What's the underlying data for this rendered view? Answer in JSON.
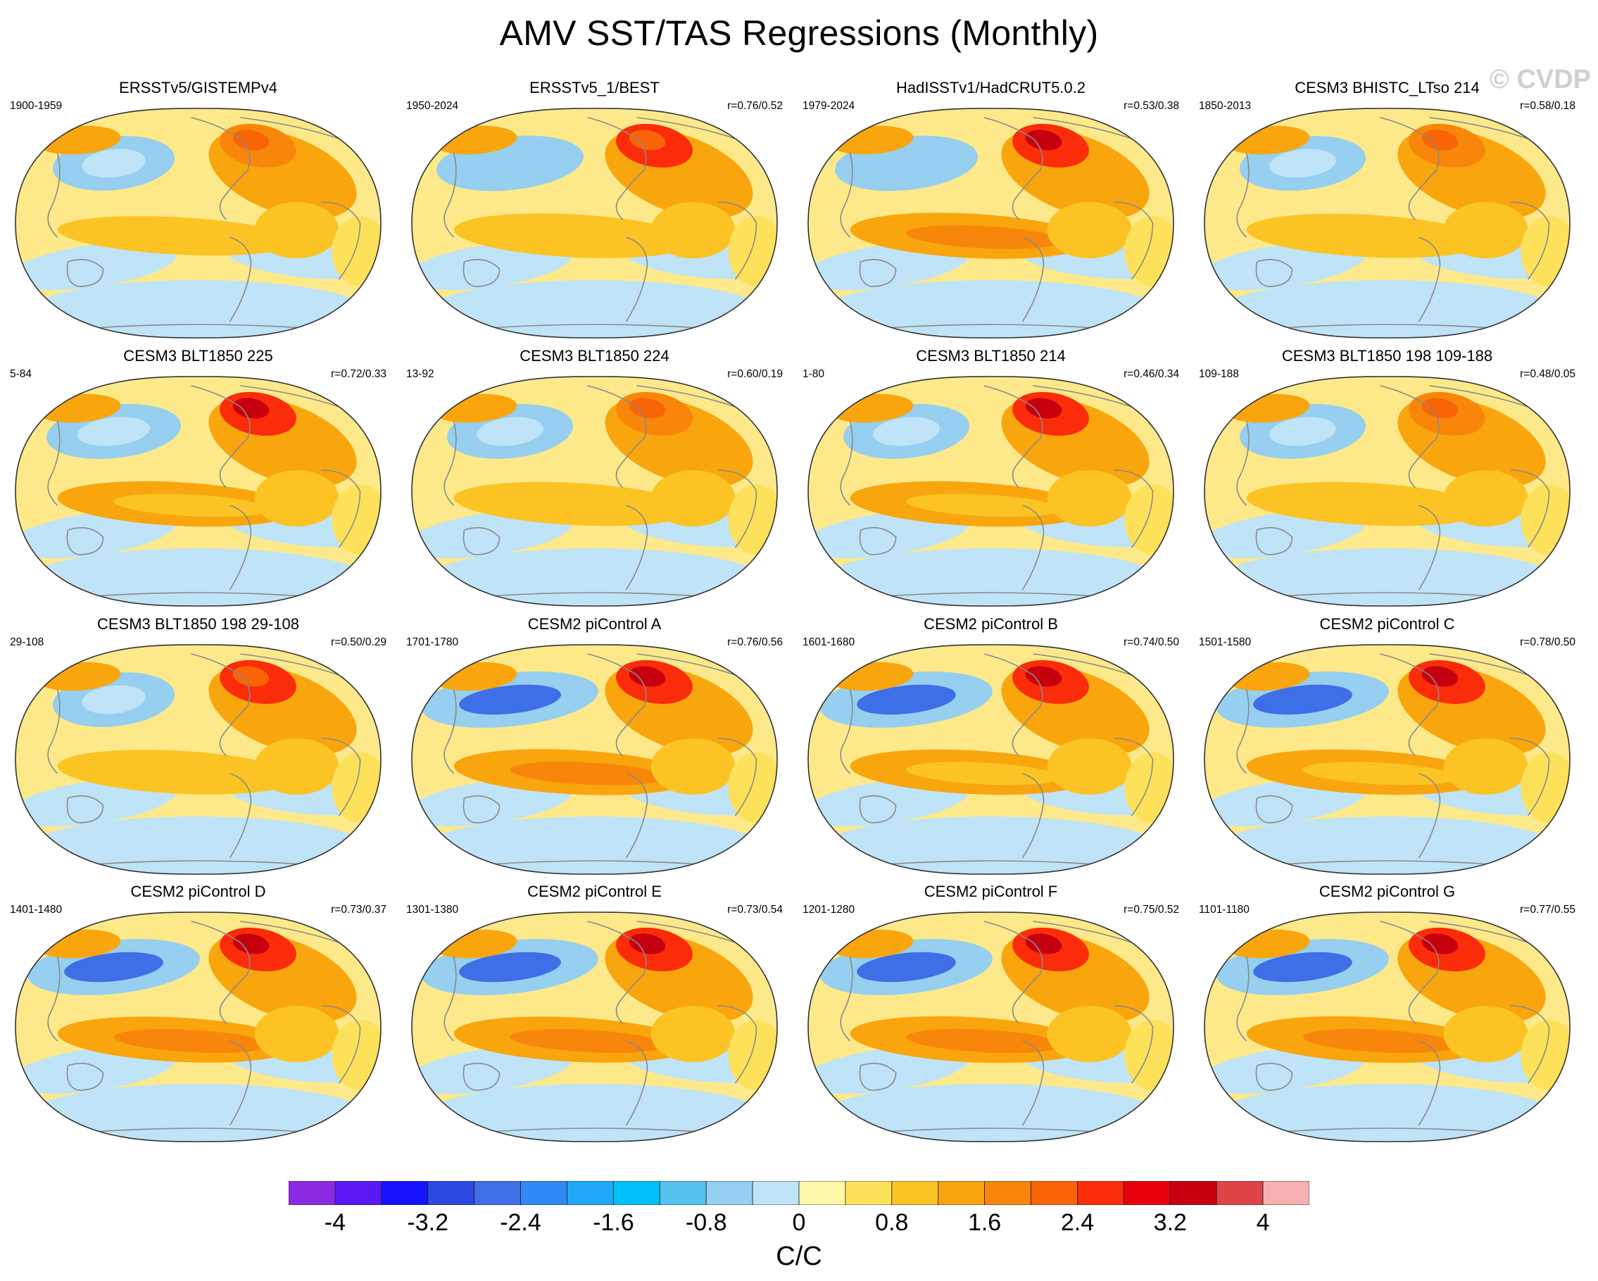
{
  "figure": {
    "title": "AMV SST/TAS Regressions (Monthly)",
    "watermark": "© CVDP"
  },
  "colorbar": {
    "colors": [
      "#8a2be2",
      "#5a18f2",
      "#1414ff",
      "#2d48e0",
      "#3f6fe6",
      "#2f88f4",
      "#1ea8f6",
      "#00c0f8",
      "#56c2f0",
      "#96cfef",
      "#bfe3f7",
      "#fff8a8",
      "#fde15a",
      "#fbc424",
      "#f9a50e",
      "#f8860a",
      "#f96406",
      "#fa2c0a",
      "#e8000b",
      "#c70010",
      "#dd4446",
      "#f8b0b0"
    ],
    "tick_labels": [
      "-4",
      "-3.2",
      "-2.4",
      "-1.6",
      "-0.8",
      "0",
      "0.8",
      "1.6",
      "2.4",
      "3.2",
      "4"
    ],
    "units": "C/C"
  },
  "chart_data": {
    "type": "heatmap",
    "projection": "Robinson global maps, 4x4 panel grid",
    "variable": "AMV regression of SST/TAS",
    "units": "C/C",
    "contour_levels": [
      -4,
      -3.6,
      -3.2,
      -2.8,
      -2.4,
      -2,
      -1.6,
      -1.2,
      -0.8,
      -0.4,
      0,
      0.4,
      0.8,
      1.2,
      1.6,
      2,
      2.4,
      2.8,
      3.2,
      3.6,
      4
    ],
    "colorbar_range": [
      -4,
      4
    ],
    "panels": [
      {
        "title": "ERSSTv5/GISTEMPv4",
        "years": "1900-1959",
        "corr": "",
        "intensity": 0.45,
        "pacific_cold": 0.25
      },
      {
        "title": "ERSSTv5_1/BEST",
        "years": "1950-2024",
        "corr": "r=0.76/0.52",
        "intensity": 0.85,
        "pacific_cold": 0.55
      },
      {
        "title": "HadISSTv1/HadCRUT5.0.2",
        "years": "1979-2024",
        "corr": "r=0.53/0.38",
        "intensity": 0.95,
        "pacific_cold": 0.5
      },
      {
        "title": "CESM3 BHISTC_LTso 214",
        "years": "1850-2013",
        "corr": "r=0.58/0.18",
        "intensity": 0.8,
        "pacific_cold": 0.3
      },
      {
        "title": "CESM3 BLT1850 225",
        "years": "5-84",
        "corr": "r=0.72/0.33",
        "intensity": 0.9,
        "pacific_cold": 0.4
      },
      {
        "title": "CESM3 BLT1850 224",
        "years": "13-92",
        "corr": "r=0.60/0.19",
        "intensity": 0.8,
        "pacific_cold": 0.3
      },
      {
        "title": "CESM3 BLT1850 214",
        "years": "1-80",
        "corr": "r=0.46/0.34",
        "intensity": 0.9,
        "pacific_cold": 0.3
      },
      {
        "title": "CESM3 BLT1850 198 109-188",
        "years": "109-188",
        "corr": "r=0.48/0.05",
        "intensity": 0.8,
        "pacific_cold": 0.3
      },
      {
        "title": "CESM3 BLT1850 198 29-108",
        "years": "29-108",
        "corr": "r=0.50/0.29",
        "intensity": 0.85,
        "pacific_cold": 0.25
      },
      {
        "title": "CESM2 piControl A",
        "years": "1701-1780",
        "corr": "r=0.76/0.56",
        "intensity": 0.95,
        "pacific_cold": 0.9
      },
      {
        "title": "CESM2 piControl B",
        "years": "1601-1680",
        "corr": "r=0.74/0.50",
        "intensity": 0.9,
        "pacific_cold": 0.85
      },
      {
        "title": "CESM2 piControl C",
        "years": "1501-1580",
        "corr": "r=0.78/0.50",
        "intensity": 0.9,
        "pacific_cold": 0.85
      },
      {
        "title": "CESM2 piControl D",
        "years": "1401-1480",
        "corr": "r=0.73/0.37",
        "intensity": 0.95,
        "pacific_cold": 0.85
      },
      {
        "title": "CESM2 piControl E",
        "years": "1301-1380",
        "corr": "r=0.73/0.54",
        "intensity": 0.95,
        "pacific_cold": 0.9
      },
      {
        "title": "CESM2 piControl F",
        "years": "1201-1280",
        "corr": "r=0.75/0.52",
        "intensity": 1.0,
        "pacific_cold": 0.85
      },
      {
        "title": "CESM2 piControl G",
        "years": "1101-1180",
        "corr": "r=0.77/0.55",
        "intensity": 1.0,
        "pacific_cold": 0.85
      }
    ]
  }
}
